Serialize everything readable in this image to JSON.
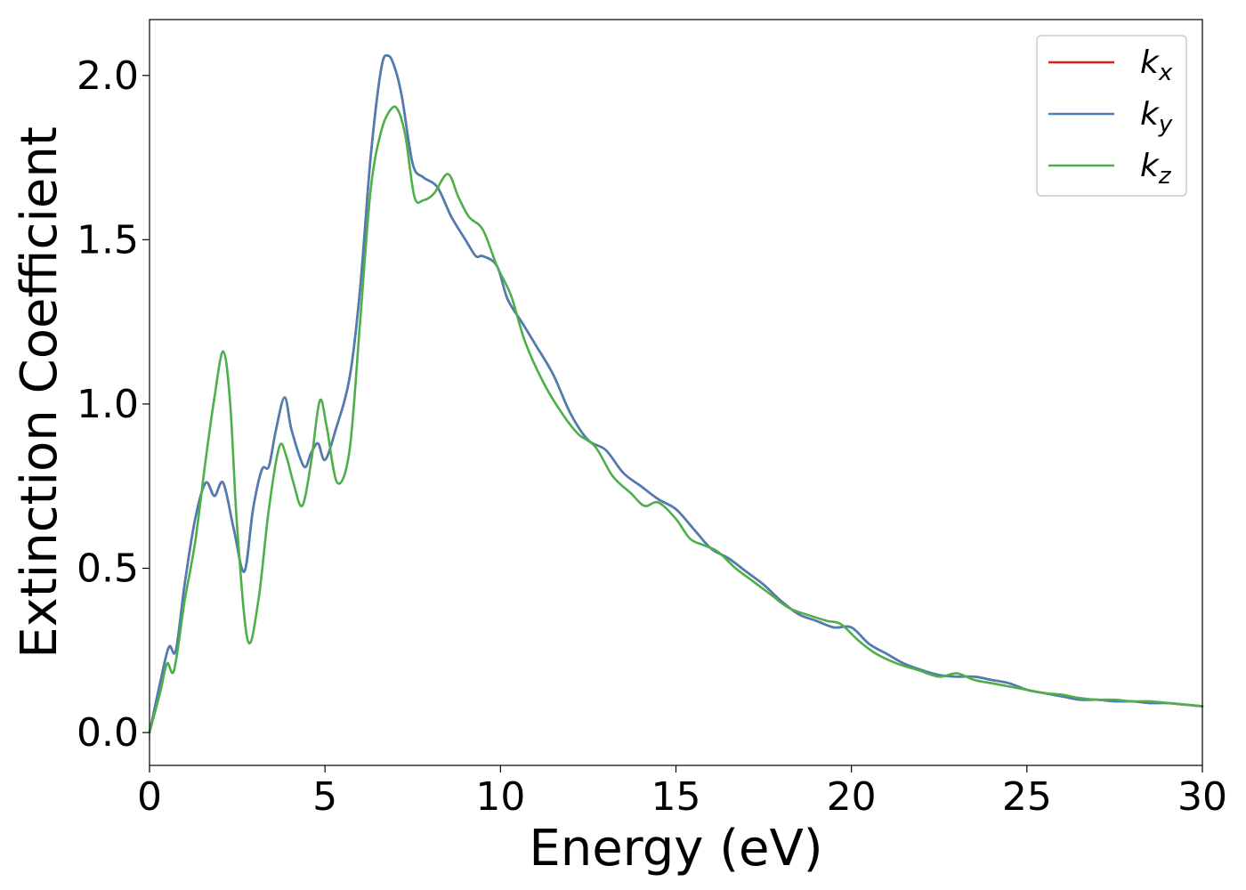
{
  "chart_data": {
    "type": "line",
    "xlabel": "Energy (eV)",
    "ylabel": "Extinction Coefficient",
    "xlim": [
      0,
      30
    ],
    "ylim": [
      -0.1,
      2.17
    ],
    "xticks": [
      0,
      5,
      10,
      15,
      20,
      25,
      30
    ],
    "xtick_labels": [
      "0",
      "5",
      "10",
      "15",
      "20",
      "25",
      "30"
    ],
    "yticks": [
      0.0,
      0.5,
      1.0,
      1.5,
      2.0
    ],
    "ytick_labels": [
      "0.0",
      "0.5",
      "1.0",
      "1.5",
      "2.0"
    ],
    "grid": false,
    "legend_position": "top-right",
    "series": [
      {
        "name": "k_x",
        "legend_main": "k",
        "legend_sub": "x",
        "color": "#e41a1c",
        "x": [
          0,
          0.3,
          0.55,
          0.75,
          1.0,
          1.3,
          1.6,
          1.85,
          2.1,
          2.4,
          2.7,
          2.95,
          3.2,
          3.4,
          3.6,
          3.85,
          4.05,
          4.4,
          4.6,
          4.8,
          5.0,
          5.3,
          5.7,
          6.0,
          6.3,
          6.6,
          6.8,
          7.0,
          7.2,
          7.5,
          7.8,
          8.2,
          8.6,
          9.0,
          9.3,
          9.5,
          9.9,
          10.2,
          10.6,
          11.0,
          11.5,
          12.0,
          12.5,
          13.0,
          13.5,
          14.0,
          14.5,
          15.0,
          15.5,
          16.0,
          16.5,
          17.0,
          17.5,
          18.0,
          18.5,
          19.0,
          19.5,
          20.0,
          20.5,
          21.0,
          21.5,
          22.0,
          22.5,
          23.0,
          23.5,
          24.0,
          24.5,
          25.0,
          25.5,
          26.0,
          26.5,
          27.0,
          27.5,
          28.0,
          28.5,
          29.0,
          29.5,
          30.0
        ],
        "y": [
          0.0,
          0.15,
          0.26,
          0.25,
          0.45,
          0.65,
          0.76,
          0.72,
          0.76,
          0.62,
          0.49,
          0.68,
          0.8,
          0.81,
          0.92,
          1.02,
          0.92,
          0.81,
          0.85,
          0.88,
          0.83,
          0.92,
          1.08,
          1.35,
          1.75,
          2.02,
          2.06,
          2.02,
          1.93,
          1.73,
          1.69,
          1.66,
          1.57,
          1.5,
          1.45,
          1.45,
          1.42,
          1.32,
          1.25,
          1.18,
          1.09,
          0.97,
          0.89,
          0.86,
          0.79,
          0.75,
          0.71,
          0.68,
          0.62,
          0.56,
          0.53,
          0.49,
          0.45,
          0.4,
          0.36,
          0.34,
          0.32,
          0.32,
          0.27,
          0.24,
          0.21,
          0.19,
          0.175,
          0.17,
          0.17,
          0.16,
          0.15,
          0.13,
          0.12,
          0.11,
          0.1,
          0.1,
          0.095,
          0.095,
          0.09,
          0.09,
          0.085,
          0.08
        ]
      },
      {
        "name": "k_y",
        "legend_main": "k",
        "legend_sub": "y",
        "color": "#4a7eb5",
        "x": [
          0,
          0.3,
          0.55,
          0.75,
          1.0,
          1.3,
          1.6,
          1.85,
          2.1,
          2.4,
          2.7,
          2.95,
          3.2,
          3.4,
          3.6,
          3.85,
          4.05,
          4.4,
          4.6,
          4.8,
          5.0,
          5.3,
          5.7,
          6.0,
          6.3,
          6.6,
          6.8,
          7.0,
          7.2,
          7.5,
          7.8,
          8.2,
          8.6,
          9.0,
          9.3,
          9.5,
          9.9,
          10.2,
          10.6,
          11.0,
          11.5,
          12.0,
          12.5,
          13.0,
          13.5,
          14.0,
          14.5,
          15.0,
          15.5,
          16.0,
          16.5,
          17.0,
          17.5,
          18.0,
          18.5,
          19.0,
          19.5,
          20.0,
          20.5,
          21.0,
          21.5,
          22.0,
          22.5,
          23.0,
          23.5,
          24.0,
          24.5,
          25.0,
          25.5,
          26.0,
          26.5,
          27.0,
          27.5,
          28.0,
          28.5,
          29.0,
          29.5,
          30.0
        ],
        "y": [
          0.0,
          0.15,
          0.26,
          0.25,
          0.45,
          0.65,
          0.76,
          0.72,
          0.76,
          0.62,
          0.49,
          0.68,
          0.8,
          0.81,
          0.92,
          1.02,
          0.92,
          0.81,
          0.85,
          0.88,
          0.83,
          0.92,
          1.08,
          1.35,
          1.75,
          2.02,
          2.06,
          2.02,
          1.93,
          1.73,
          1.69,
          1.66,
          1.57,
          1.5,
          1.45,
          1.45,
          1.42,
          1.32,
          1.25,
          1.18,
          1.09,
          0.97,
          0.89,
          0.86,
          0.79,
          0.75,
          0.71,
          0.68,
          0.62,
          0.56,
          0.53,
          0.49,
          0.45,
          0.4,
          0.36,
          0.34,
          0.32,
          0.32,
          0.27,
          0.24,
          0.21,
          0.19,
          0.175,
          0.17,
          0.17,
          0.16,
          0.15,
          0.13,
          0.12,
          0.11,
          0.1,
          0.1,
          0.095,
          0.095,
          0.09,
          0.09,
          0.085,
          0.08
        ]
      },
      {
        "name": "k_z",
        "legend_main": "k",
        "legend_sub": "z",
        "color": "#4daf4a",
        "x": [
          0,
          0.3,
          0.5,
          0.7,
          1.0,
          1.3,
          1.6,
          1.85,
          2.1,
          2.3,
          2.5,
          2.8,
          3.1,
          3.4,
          3.7,
          3.9,
          4.1,
          4.35,
          4.6,
          4.85,
          5.05,
          5.35,
          5.7,
          6.0,
          6.3,
          6.6,
          6.9,
          7.1,
          7.3,
          7.55,
          7.8,
          8.1,
          8.5,
          8.8,
          9.1,
          9.5,
          9.9,
          10.3,
          10.7,
          11.2,
          11.7,
          12.2,
          12.7,
          13.2,
          13.7,
          14.1,
          14.5,
          15.0,
          15.4,
          15.8,
          16.2,
          16.7,
          17.2,
          17.7,
          18.2,
          18.7,
          19.3,
          19.7,
          20.2,
          20.7,
          21.3,
          21.9,
          22.5,
          23.0,
          23.5,
          24.0,
          24.5,
          25.0,
          25.5,
          26.0,
          26.5,
          27.0,
          27.5,
          28.0,
          28.5,
          29.0,
          29.5,
          30.0
        ],
        "y": [
          0.0,
          0.12,
          0.21,
          0.19,
          0.4,
          0.58,
          0.83,
          1.02,
          1.16,
          1.0,
          0.62,
          0.28,
          0.4,
          0.68,
          0.87,
          0.84,
          0.76,
          0.69,
          0.82,
          1.01,
          0.93,
          0.76,
          0.86,
          1.25,
          1.65,
          1.83,
          1.9,
          1.89,
          1.81,
          1.63,
          1.62,
          1.64,
          1.7,
          1.63,
          1.57,
          1.53,
          1.42,
          1.33,
          1.19,
          1.07,
          0.98,
          0.91,
          0.87,
          0.78,
          0.73,
          0.69,
          0.7,
          0.65,
          0.59,
          0.57,
          0.55,
          0.5,
          0.46,
          0.42,
          0.38,
          0.36,
          0.34,
          0.33,
          0.28,
          0.24,
          0.21,
          0.19,
          0.17,
          0.18,
          0.16,
          0.15,
          0.14,
          0.13,
          0.12,
          0.115,
          0.105,
          0.1,
          0.1,
          0.095,
          0.095,
          0.09,
          0.085,
          0.08
        ]
      }
    ]
  }
}
